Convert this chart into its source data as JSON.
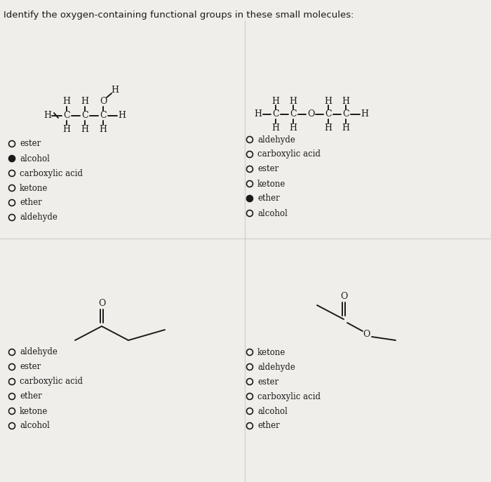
{
  "title": "Identify the oxygen-containing functional groups in these small molecules:",
  "bg_color": "#f0eeea",
  "text_color": "#1a1a1a",
  "title_fontsize": 9.5,
  "mol_fontsize": 9.0,
  "label_fontsize": 8.5,
  "mol1_options": [
    {
      "text": "ester",
      "selected": false
    },
    {
      "text": "alcohol",
      "selected": true
    },
    {
      "text": "carboxylic acid",
      "selected": false
    },
    {
      "text": "ketone",
      "selected": false
    },
    {
      "text": "ether",
      "selected": false
    },
    {
      "text": "aldehyde",
      "selected": false
    }
  ],
  "mol2_options": [
    {
      "text": "aldehyde",
      "selected": false
    },
    {
      "text": "carboxylic acid",
      "selected": false
    },
    {
      "text": "ester",
      "selected": false
    },
    {
      "text": "ketone",
      "selected": false
    },
    {
      "text": "ether",
      "selected": true
    },
    {
      "text": "alcohol",
      "selected": false
    }
  ],
  "mol3_options": [
    {
      "text": "aldehyde",
      "selected": false
    },
    {
      "text": "ester",
      "selected": false
    },
    {
      "text": "carboxylic acid",
      "selected": false
    },
    {
      "text": "ether",
      "selected": false
    },
    {
      "text": "ketone",
      "selected": false
    },
    {
      "text": "alcohol",
      "selected": false
    }
  ],
  "mol4_options": [
    {
      "text": "ketone",
      "selected": false
    },
    {
      "text": "aldehyde",
      "selected": false
    },
    {
      "text": "ester",
      "selected": false
    },
    {
      "text": "carboxylic acid",
      "selected": false
    },
    {
      "text": "alcohol",
      "selected": false
    },
    {
      "text": "ether",
      "selected": false
    }
  ]
}
